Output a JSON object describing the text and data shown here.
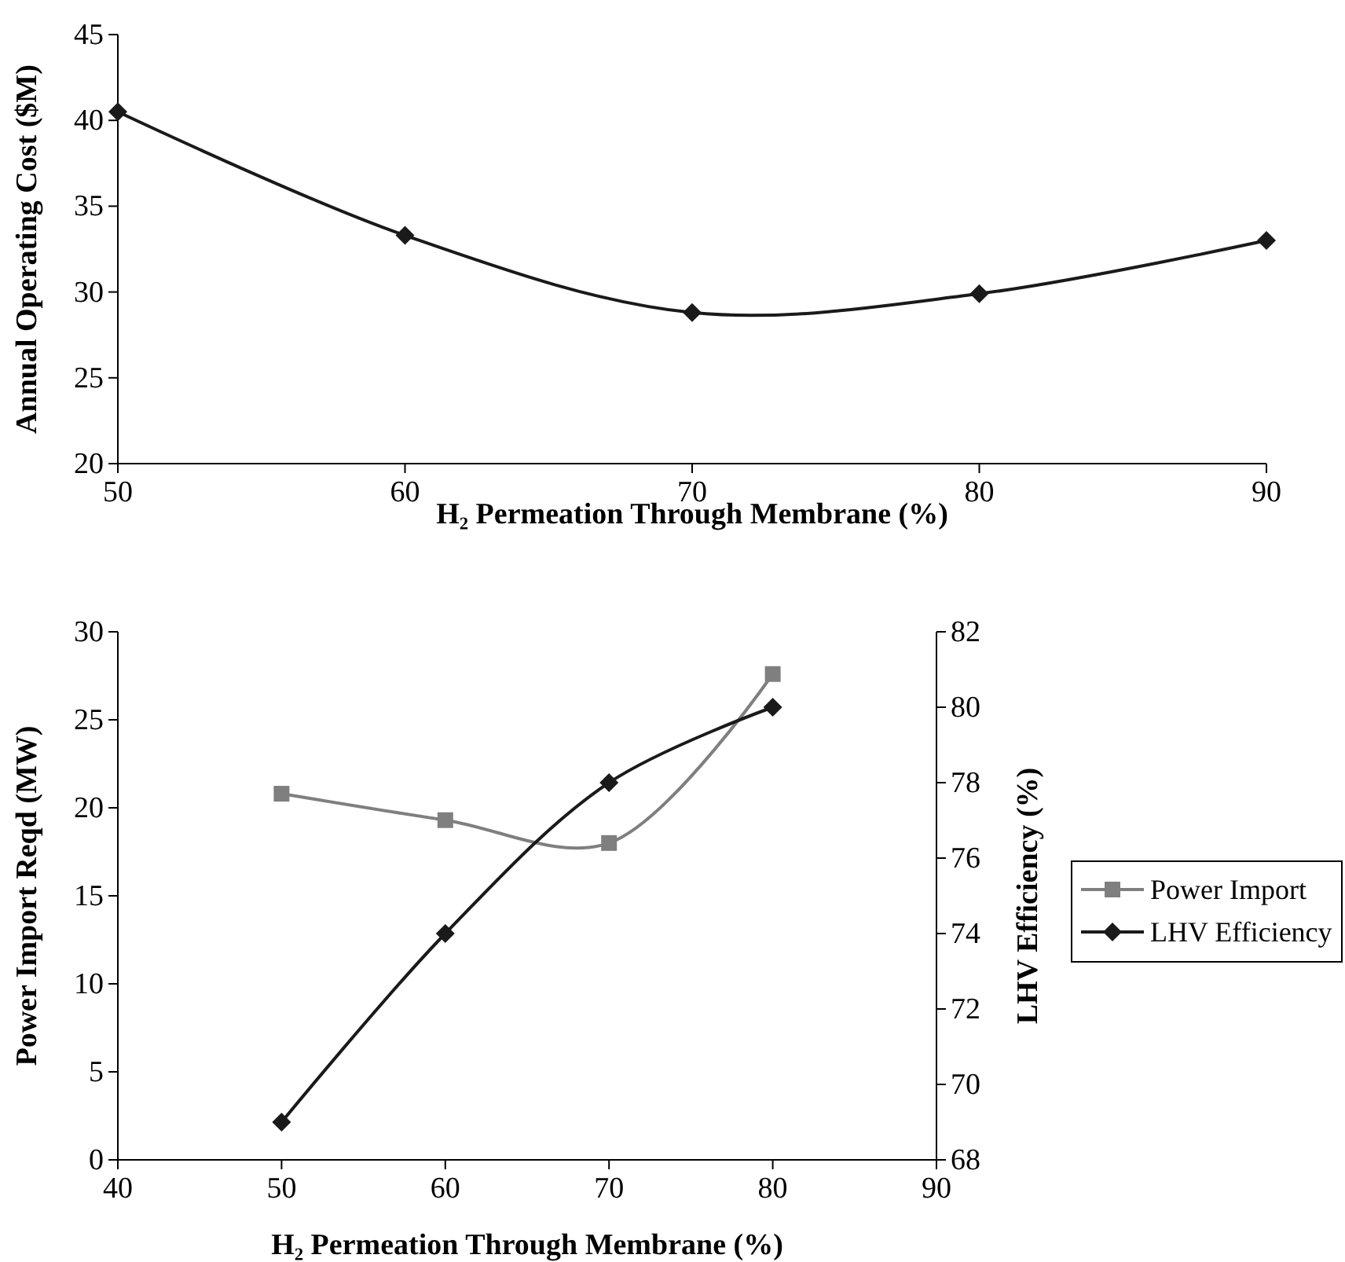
{
  "chart_data": [
    {
      "type": "line",
      "xlabel": "H₂ Permeation Through Membrane (%)",
      "ylabel": "Annual Operating Cost ($M)",
      "x": [
        50,
        60,
        70,
        80,
        90
      ],
      "xlim": [
        50,
        90
      ],
      "xticks": [
        50,
        60,
        70,
        80,
        90
      ],
      "ylim": [
        20,
        45
      ],
      "yticks": [
        20,
        25,
        30,
        35,
        40,
        45
      ],
      "grid": false,
      "legend": false,
      "marker": "diamond",
      "series": [
        {
          "color": "#1a1a1a",
          "values": [
            40.5,
            33.3,
            28.8,
            29.9,
            33.0
          ]
        }
      ]
    },
    {
      "type": "line",
      "xlabel": "H₂ Permeation Through Membrane (%)",
      "ylabel": "Power Import Reqd (MW)",
      "y2label": "LHV Efficiency (%)",
      "x": [
        50,
        60,
        70,
        80
      ],
      "xlim": [
        40,
        90
      ],
      "xticks": [
        40,
        50,
        60,
        70,
        80,
        90
      ],
      "ylim": [
        0,
        30
      ],
      "yticks": [
        0,
        5,
        10,
        15,
        20,
        25,
        30
      ],
      "y2lim": [
        68,
        82
      ],
      "y2ticks": [
        68,
        70,
        72,
        74,
        76,
        78,
        80,
        82
      ],
      "grid": false,
      "legend": "right",
      "series": [
        {
          "name": "Power Import",
          "color": "#7f7f7f",
          "marker": "square",
          "values": [
            20.8,
            19.3,
            18.0,
            27.6
          ]
        },
        {
          "name": "LHV Efficiency",
          "color": "#1a1a1a",
          "marker": "diamond",
          "axis": "y2",
          "values": [
            69,
            74,
            78,
            80
          ]
        }
      ]
    }
  ]
}
